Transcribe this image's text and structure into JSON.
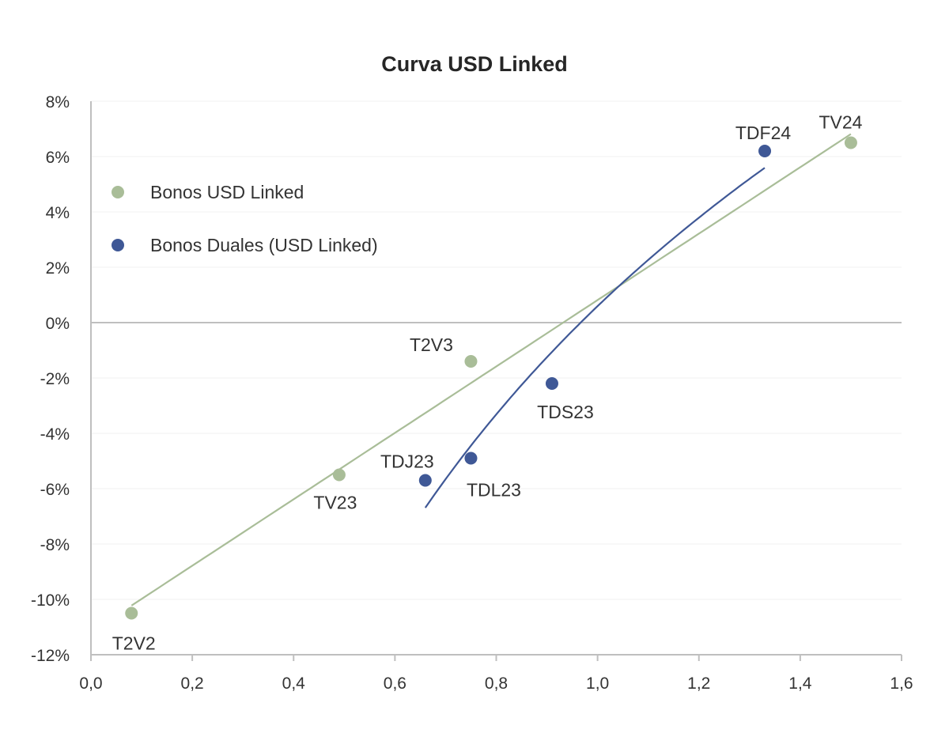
{
  "chart_data": {
    "type": "scatter",
    "title": "Curva USD Linked",
    "xlabel": "",
    "ylabel": "",
    "xlim": [
      0,
      1.6
    ],
    "ylim": [
      -12,
      8
    ],
    "x_ticks": [
      "0,0",
      "0,2",
      "0,4",
      "0,6",
      "0,8",
      "1,0",
      "1,2",
      "1,4",
      "1,6"
    ],
    "y_ticks": [
      "8%",
      "6%",
      "4%",
      "2%",
      "0%",
      "-2%",
      "-4%",
      "-6%",
      "-8%",
      "-10%",
      "-12%"
    ],
    "legend_position": "top-left",
    "grid": "horizontal, faint",
    "series": [
      {
        "name": "Bonos USD Linked",
        "color": "#a9bd98",
        "points": [
          {
            "label": "T2V2",
            "x": 0.08,
            "y": -10.5
          },
          {
            "label": "TV23",
            "x": 0.49,
            "y": -5.5
          },
          {
            "label": "T2V3",
            "x": 0.75,
            "y": -1.4
          },
          {
            "label": "TV24",
            "x": 1.5,
            "y": 6.5
          }
        ],
        "trendline": {
          "type": "linear",
          "x_range": [
            0.08,
            1.5
          ]
        }
      },
      {
        "name": "Bonos Duales (USD Linked)",
        "color": "#3f5896",
        "points": [
          {
            "label": "TDJ23",
            "x": 0.66,
            "y": -5.7
          },
          {
            "label": "TDL23",
            "x": 0.75,
            "y": -4.9
          },
          {
            "label": "TDS23",
            "x": 0.91,
            "y": -2.2
          },
          {
            "label": "TDF24",
            "x": 1.33,
            "y": 6.2
          }
        ],
        "trendline": {
          "type": "logarithmic",
          "x_range": [
            0.66,
            1.33
          ]
        }
      }
    ]
  }
}
